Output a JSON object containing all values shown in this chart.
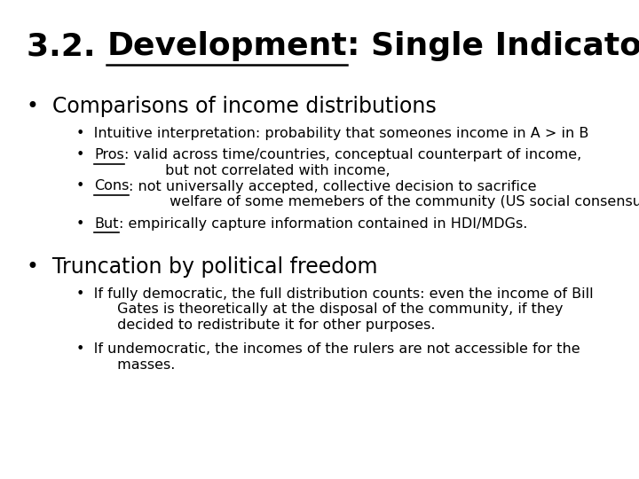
{
  "bg_color": "#ffffff",
  "text_color": "#000000",
  "title_fs": 26,
  "b1_fs": 17,
  "sb_fs": 11.5,
  "title_prefix": "3.2. ",
  "title_underline_word": "Development",
  "title_suffix": ": Single Indicator",
  "bullet1": "Comparisons of income distributions",
  "sub1_1": "Intuitive interpretation: probability that someones income in A > in B",
  "sub1_2_u": "Pros",
  "sub1_2_r": ": valid across time/countries, conceptual counterpart of income,\n         but not correlated with income,",
  "sub1_3_u": "Cons",
  "sub1_3_r": ": not universally accepted, collective decision to sacrifice\n         welfare of some memebers of the community (US social consensus)",
  "sub1_4_u": "But",
  "sub1_4_r": ": empirically capture information contained in HDI/MDGs.",
  "bullet2": "Truncation by political freedom",
  "sub2_1": "If fully democratic, the full distribution counts: even the income of Bill\n         Gates is theoretically at the disposal of the community, if they\n         decided to redistribute it for other purposes.",
  "sub2_2": "If undemocratic, the incomes of the rulers are not accessible for the\n         masses."
}
